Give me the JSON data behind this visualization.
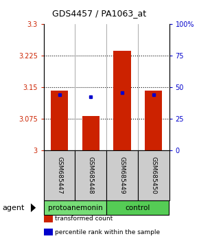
{
  "title": "GDS4457 / PA1063_at",
  "samples": [
    "GSM685447",
    "GSM685448",
    "GSM685449",
    "GSM685450"
  ],
  "bar_values": [
    3.143,
    3.083,
    3.237,
    3.143
  ],
  "blue_dot_values": [
    3.133,
    3.128,
    3.138,
    3.133
  ],
  "ylim_left": [
    3.0,
    3.3
  ],
  "yticks_left": [
    3.0,
    3.075,
    3.15,
    3.225,
    3.3
  ],
  "ytick_labels_left": [
    "3",
    "3.075",
    "3.15",
    "3.225",
    "3.3"
  ],
  "ylim_right": [
    0,
    100
  ],
  "yticks_right": [
    0,
    25,
    50,
    75,
    100
  ],
  "ytick_labels_right": [
    "0",
    "25",
    "50",
    "75",
    "100%"
  ],
  "bar_color": "#cc2200",
  "dot_color": "#0000cc",
  "bar_bottom": 3.0,
  "groups": [
    {
      "label": "protoanemonin",
      "samples": [
        0,
        1
      ],
      "color": "#77dd77"
    },
    {
      "label": "control",
      "samples": [
        2,
        3
      ],
      "color": "#55cc55"
    }
  ],
  "agent_label": "agent",
  "legend_items": [
    {
      "label": "transformed count",
      "color": "#cc2200"
    },
    {
      "label": "percentile rank within the sample",
      "color": "#0000cc"
    }
  ],
  "background_color": "#ffffff",
  "plot_bg_color": "#ffffff",
  "sample_bg_color": "#cccccc",
  "bar_width": 0.55,
  "figwidth": 2.9,
  "figheight": 3.54,
  "dpi": 100
}
